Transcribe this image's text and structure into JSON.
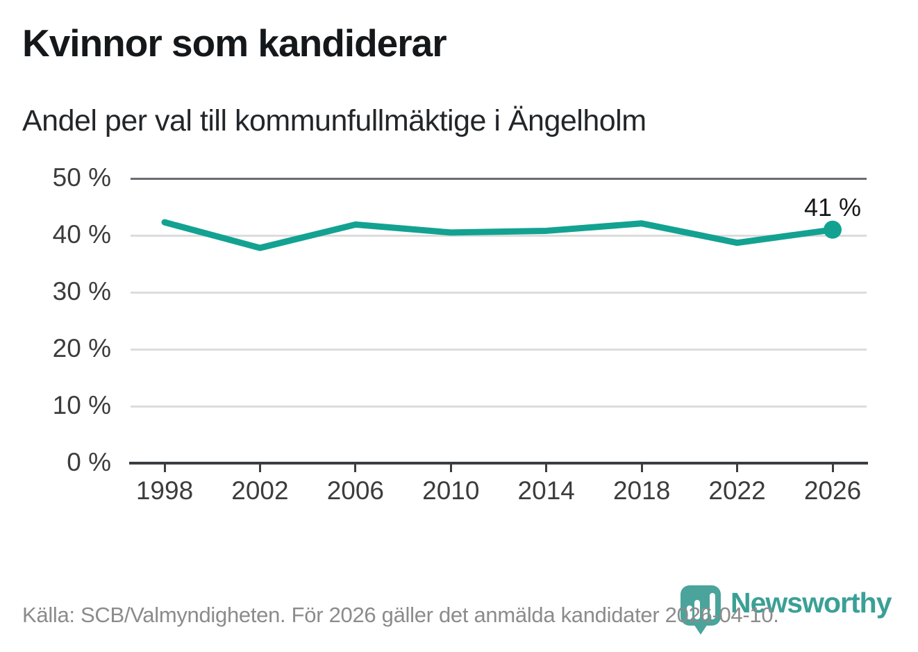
{
  "header": {
    "title": "Kvinnor som kandiderar",
    "subtitle": "Andel per val till kommunfullmäktige i Ängelholm"
  },
  "chart_data": {
    "type": "line",
    "title": "Kvinnor som kandiderar",
    "subtitle": "Andel per val till kommunfullmäktige i Ängelholm",
    "x": [
      1998,
      2002,
      2006,
      2010,
      2014,
      2018,
      2022,
      2026
    ],
    "values": [
      42.3,
      37.8,
      41.9,
      40.5,
      40.8,
      42.1,
      38.7,
      41.0
    ],
    "unit": "%",
    "ylim": [
      0,
      50
    ],
    "yticks": [
      0,
      10,
      20,
      30,
      40,
      50
    ],
    "ytick_labels": [
      "0 %",
      "10 %",
      "20 %",
      "30 %",
      "40 %",
      "50 %"
    ],
    "grid": "horizontal-gridlines-on",
    "legend": "none",
    "line_color": "#13a291",
    "last_point_label": "41 %",
    "last_point_marker": "filled-circle"
  },
  "footer": {
    "source": "Källa: SCB/Valmyndigheten. För 2026 gäller det anmälda kandidater 2026-04-10.",
    "logo_text": "Newsworthy"
  },
  "icons": {
    "logo": "map-pin-bar-chart-icon"
  },
  "colors": {
    "accent_line": "#13a291",
    "logo_teal": "#4aa49b",
    "grid_light": "#dcdcdd",
    "grid_top": "#6b6b70",
    "axis": "#3b3e40",
    "footer_text": "#8b8b8b"
  }
}
